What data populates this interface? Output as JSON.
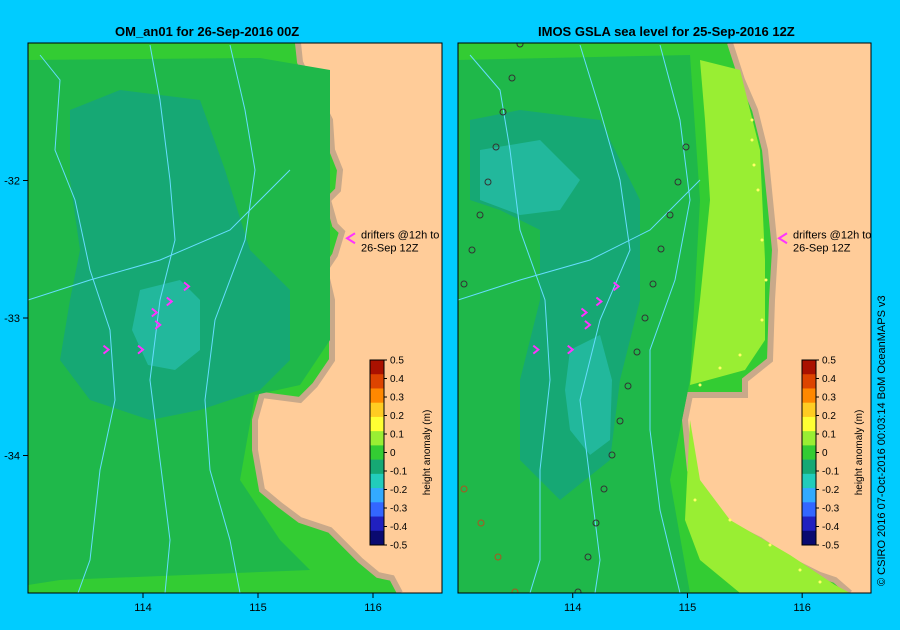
{
  "credit": "© CSIRO 2016   07-Oct-2016 00:03:14 BoM OceanMAPS v3",
  "colors": {
    "background": "#00ccff",
    "land": "#ffcc99",
    "coast_shelf": "#c9a98a",
    "drifter": "#ff33ff",
    "isobath": "#66ddff"
  },
  "chart_data": [
    {
      "type": "heatmap",
      "title": "OM_an01  for 26-Sep-2016 00Z",
      "x_ticks": [
        "114",
        "115",
        "116"
      ],
      "y_ticks": [
        "-32",
        "-33",
        "-34"
      ],
      "xlim": [
        113.0,
        116.6
      ],
      "ylim": [
        -35.0,
        -31.0
      ],
      "colorbar": {
        "label": "height anomaly (m)",
        "ticks": [
          "0.5",
          "0.4",
          "0.3",
          "0.2",
          "0.1",
          "0",
          "-0.1",
          "-0.2",
          "-0.3",
          "-0.4",
          "-0.5"
        ],
        "range": [
          -0.5,
          0.5
        ]
      },
      "annotation": [
        "drifters @12h to",
        "26-Sep 12Z"
      ],
      "drifters": [
        {
          "lon": 114.4,
          "lat": -32.77
        },
        {
          "lon": 114.25,
          "lat": -32.88
        },
        {
          "lon": 114.12,
          "lat": -32.96
        },
        {
          "lon": 114.15,
          "lat": -33.05
        },
        {
          "lon": 113.7,
          "lat": -33.23
        },
        {
          "lon": 114.0,
          "lat": -33.23
        }
      ],
      "values_note_free": true
    },
    {
      "type": "heatmap",
      "title": "IMOS GSLA sea level  for 25-Sep-2016 12Z",
      "x_ticks": [
        "114",
        "115",
        "116"
      ],
      "y_ticks": [],
      "xlim": [
        113.0,
        116.6
      ],
      "ylim": [
        -35.0,
        -31.0
      ],
      "colorbar": {
        "label": "height anomaly (m)",
        "ticks": [
          "0.5",
          "0.4",
          "0.3",
          "0.2",
          "0.1",
          "0",
          "-0.1",
          "-0.2",
          "-0.3",
          "-0.4",
          "-0.5"
        ],
        "range": [
          -0.5,
          0.5
        ]
      },
      "annotation": [
        "drifters @12h to",
        "26-Sep 12Z"
      ],
      "drifters": [
        {
          "lon": 114.4,
          "lat": -32.77
        },
        {
          "lon": 114.25,
          "lat": -32.88
        },
        {
          "lon": 114.12,
          "lat": -32.96
        },
        {
          "lon": 114.15,
          "lat": -33.05
        },
        {
          "lon": 113.7,
          "lat": -33.23
        },
        {
          "lon": 114.0,
          "lat": -33.23
        }
      ]
    }
  ]
}
